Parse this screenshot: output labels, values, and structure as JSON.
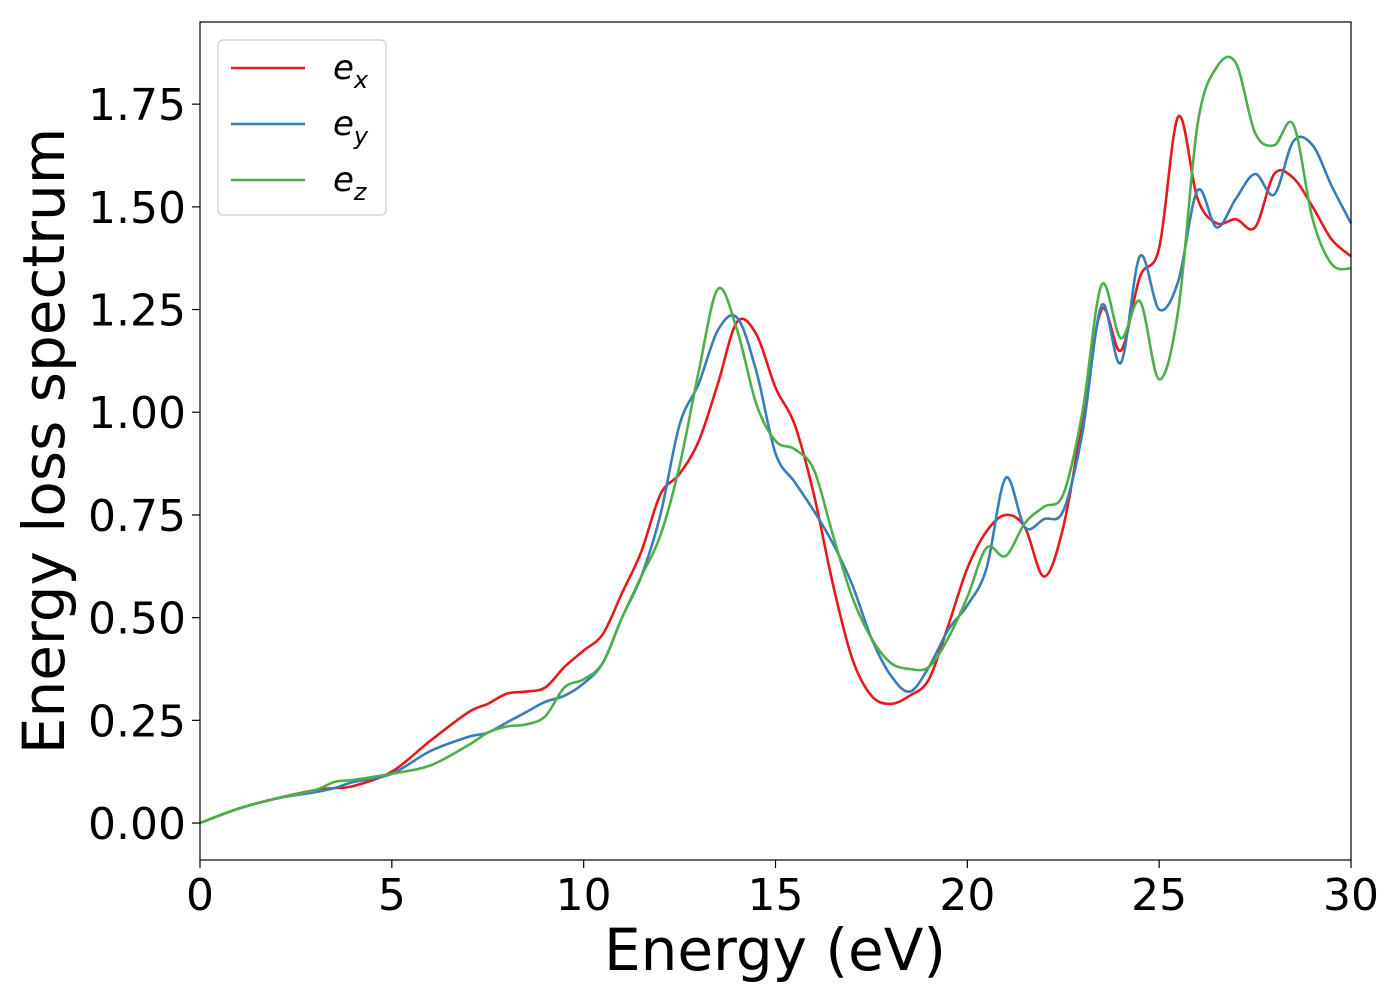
{
  "chart_data": {
    "type": "line",
    "title": "",
    "xlabel": "Energy (eV)",
    "ylabel": "Energy loss spectrum",
    "xlim": [
      0,
      30
    ],
    "ylim": [
      -0.09,
      1.95
    ],
    "xticks": [
      0,
      5,
      10,
      15,
      20,
      25,
      30
    ],
    "xtick_labels": [
      "0",
      "5",
      "10",
      "15",
      "20",
      "25",
      "30"
    ],
    "yticks": [
      0,
      0.25,
      0.5,
      0.75,
      1.0,
      1.25,
      1.5,
      1.75
    ],
    "ytick_labels": [
      "0.00",
      "0.25",
      "0.50",
      "0.75",
      "1.00",
      "1.25",
      "1.50",
      "1.75"
    ],
    "grid": false,
    "legend_position": "top-left",
    "series": [
      {
        "name": "e_x",
        "label_base": "e",
        "label_sub": "x",
        "color": "#e41a1c",
        "x": [
          0,
          1,
          2,
          3,
          3.5,
          4,
          5,
          6,
          7,
          7.5,
          8,
          8.5,
          9,
          9.5,
          10,
          10.5,
          11,
          11.5,
          12,
          12.5,
          13,
          13.5,
          14,
          14.5,
          15,
          15.5,
          16,
          16.5,
          17,
          17.5,
          18,
          18.5,
          19,
          19.5,
          20,
          20.5,
          21,
          21.5,
          22,
          22.5,
          23,
          23.5,
          24,
          24.5,
          25,
          25.5,
          26,
          26.5,
          27,
          27.5,
          28,
          28.5,
          29,
          29.5,
          30
        ],
        "y": [
          0,
          0.035,
          0.06,
          0.08,
          0.085,
          0.09,
          0.125,
          0.2,
          0.27,
          0.29,
          0.315,
          0.32,
          0.33,
          0.38,
          0.42,
          0.46,
          0.56,
          0.66,
          0.8,
          0.85,
          0.93,
          1.07,
          1.22,
          1.19,
          1.06,
          0.97,
          0.8,
          0.58,
          0.4,
          0.31,
          0.29,
          0.31,
          0.35,
          0.48,
          0.62,
          0.71,
          0.75,
          0.72,
          0.6,
          0.72,
          0.98,
          1.25,
          1.15,
          1.33,
          1.4,
          1.72,
          1.52,
          1.46,
          1.47,
          1.45,
          1.58,
          1.57,
          1.5,
          1.42,
          1.38
        ]
      },
      {
        "name": "e_y",
        "label_base": "e",
        "label_sub": "y",
        "color": "#377eb8",
        "x": [
          0,
          1,
          2,
          3,
          3.5,
          4,
          5,
          6,
          7,
          7.5,
          8,
          8.5,
          9,
          9.5,
          10,
          10.5,
          11,
          11.5,
          12,
          12.5,
          13,
          13.5,
          14,
          14.5,
          15,
          15.5,
          16,
          16.5,
          17,
          17.5,
          18,
          18.5,
          19,
          19.5,
          20,
          20.5,
          21,
          21.5,
          22,
          22.5,
          23,
          23.5,
          24,
          24.5,
          25,
          25.5,
          26,
          26.5,
          27,
          27.5,
          28,
          28.5,
          29,
          29.5,
          30
        ],
        "y": [
          0,
          0.035,
          0.06,
          0.075,
          0.085,
          0.1,
          0.12,
          0.175,
          0.21,
          0.22,
          0.245,
          0.27,
          0.295,
          0.31,
          0.34,
          0.39,
          0.5,
          0.6,
          0.75,
          0.97,
          1.07,
          1.2,
          1.23,
          1.1,
          0.9,
          0.83,
          0.76,
          0.68,
          0.58,
          0.45,
          0.36,
          0.32,
          0.38,
          0.47,
          0.53,
          0.62,
          0.84,
          0.72,
          0.74,
          0.76,
          0.95,
          1.26,
          1.12,
          1.38,
          1.25,
          1.32,
          1.54,
          1.45,
          1.52,
          1.58,
          1.53,
          1.66,
          1.65,
          1.55,
          1.46
        ]
      },
      {
        "name": "e_z",
        "label_base": "e",
        "label_sub": "z",
        "color": "#4daf4a",
        "x": [
          0,
          1,
          2,
          3,
          3.5,
          4,
          5,
          6,
          7,
          7.5,
          8,
          8.5,
          9,
          9.5,
          10,
          10.5,
          11,
          11.5,
          12,
          12.5,
          13,
          13.5,
          14,
          14.5,
          15,
          15.5,
          16,
          16.5,
          17,
          17.5,
          18,
          18.5,
          19,
          19.5,
          20,
          20.5,
          21,
          21.5,
          22,
          22.5,
          23,
          23.5,
          24,
          24.5,
          25,
          25.5,
          26,
          26.5,
          27,
          27.5,
          28,
          28.5,
          29,
          29.5,
          30
        ],
        "y": [
          0,
          0.035,
          0.06,
          0.08,
          0.1,
          0.105,
          0.12,
          0.14,
          0.19,
          0.22,
          0.235,
          0.24,
          0.26,
          0.33,
          0.35,
          0.39,
          0.5,
          0.6,
          0.7,
          0.87,
          1.1,
          1.3,
          1.2,
          1.02,
          0.93,
          0.91,
          0.86,
          0.7,
          0.55,
          0.45,
          0.39,
          0.375,
          0.38,
          0.45,
          0.55,
          0.67,
          0.65,
          0.73,
          0.77,
          0.8,
          1.0,
          1.31,
          1.18,
          1.27,
          1.08,
          1.25,
          1.7,
          1.84,
          1.85,
          1.68,
          1.65,
          1.7,
          1.47,
          1.36,
          1.35
        ]
      }
    ]
  }
}
